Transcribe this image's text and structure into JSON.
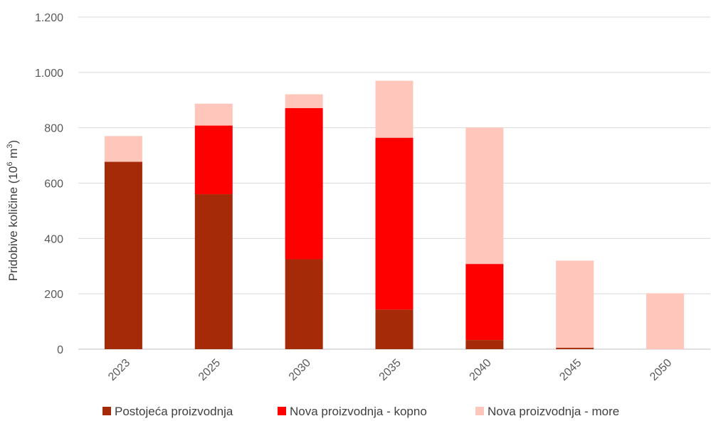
{
  "chart_data": {
    "type": "bar",
    "stacked": true,
    "categories": [
      "2023",
      "2025",
      "2030",
      "2035",
      "2040",
      "2045",
      "2050"
    ],
    "series": [
      {
        "name": "Postojeća proizvodnja",
        "color": "#A52A07",
        "values": [
          677,
          560,
          325,
          143,
          33,
          5,
          0
        ]
      },
      {
        "name": "Nova proizvodnja - kopno",
        "color": "#FF0000",
        "values": [
          0,
          248,
          546,
          621,
          275,
          0,
          0
        ]
      },
      {
        "name": "Nova proizvodnja - more",
        "color": "#FFC7BC",
        "values": [
          93,
          79,
          50,
          206,
          493,
          315,
          202
        ]
      }
    ],
    "ylabel_main": "Pridobive količine (10",
    "ylabel_sup1": "6",
    "ylabel_mid": " m",
    "ylabel_sup2": "3",
    "ylabel_end": ")",
    "ylim": [
      0,
      1200
    ],
    "yticks": [
      0,
      200,
      400,
      600,
      800,
      1000,
      1200
    ],
    "ytick_labels": [
      "0",
      "200",
      "400",
      "600",
      "800",
      "1.000",
      "1.200"
    ],
    "grid": true,
    "legend": "bottom"
  }
}
